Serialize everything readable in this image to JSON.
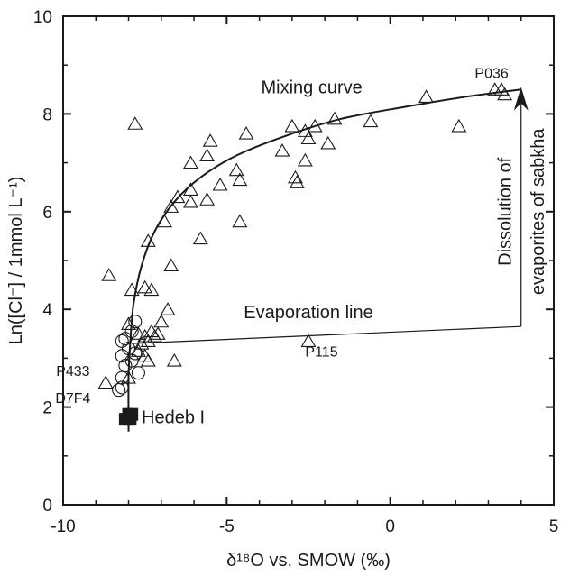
{
  "chart_data": {
    "type": "scatter",
    "ylabel": "Ln([Cl⁻] / 1mmol L⁻¹)",
    "xlabel": "δ¹⁸O vs. SMOW (‰)",
    "xlim": [
      -10,
      5
    ],
    "ylim": [
      0,
      10
    ],
    "xticks": [
      -10,
      -5,
      0,
      5
    ],
    "yticks": [
      0,
      2,
      4,
      6,
      8,
      10
    ],
    "xtick_labels": [
      "-10",
      "-5",
      "0",
      "5"
    ],
    "ytick_labels": [
      "0",
      "2",
      "4",
      "6",
      "8",
      "10"
    ],
    "grid": false,
    "series": [
      {
        "marker": "triangle",
        "points": [
          [
            -7.8,
            7.8
          ],
          [
            -8.6,
            4.7
          ],
          [
            -7.9,
            4.4
          ],
          [
            -7.5,
            4.45
          ],
          [
            -7.3,
            4.4
          ],
          [
            -7.4,
            5.4
          ],
          [
            -6.9,
            5.8
          ],
          [
            -6.7,
            6.1
          ],
          [
            -6.5,
            6.3
          ],
          [
            -6.1,
            6.45
          ],
          [
            -6.1,
            6.2
          ],
          [
            -6.1,
            7.0
          ],
          [
            -5.8,
            5.45
          ],
          [
            -5.6,
            6.25
          ],
          [
            -5.6,
            7.15
          ],
          [
            -5.5,
            7.45
          ],
          [
            -5.2,
            6.55
          ],
          [
            -4.7,
            6.85
          ],
          [
            -4.6,
            6.65
          ],
          [
            -4.6,
            5.8
          ],
          [
            -4.4,
            7.6
          ],
          [
            -3.3,
            7.25
          ],
          [
            -3.0,
            7.75
          ],
          [
            -2.9,
            6.7
          ],
          [
            -2.85,
            6.6
          ],
          [
            -2.6,
            7.05
          ],
          [
            -2.6,
            7.65
          ],
          [
            -2.5,
            7.5
          ],
          [
            -2.3,
            7.75
          ],
          [
            -1.9,
            7.4
          ],
          [
            -1.7,
            7.9
          ],
          [
            -0.6,
            7.85
          ],
          [
            1.1,
            8.35
          ],
          [
            2.1,
            7.75
          ],
          [
            3.2,
            8.5
          ],
          [
            3.4,
            8.5
          ],
          [
            3.5,
            8.4
          ],
          [
            -6.7,
            4.9
          ],
          [
            -6.8,
            4.0
          ],
          [
            -7.0,
            3.75
          ],
          [
            -7.1,
            3.5
          ],
          [
            -7.2,
            3.45
          ],
          [
            -7.3,
            3.55
          ],
          [
            -7.4,
            3.35
          ],
          [
            -7.5,
            3.45
          ],
          [
            -7.6,
            3.3
          ],
          [
            -7.7,
            3.5
          ],
          [
            -7.5,
            3.05
          ],
          [
            -7.7,
            3.15
          ],
          [
            -7.4,
            2.95
          ],
          [
            -6.6,
            2.95
          ],
          [
            -2.5,
            3.35
          ],
          [
            -8.7,
            2.5
          ],
          [
            -8.0,
            3.7
          ],
          [
            -8.0,
            2.6
          ]
        ]
      },
      {
        "marker": "circle",
        "points": [
          [
            -7.8,
            3.75
          ],
          [
            -7.9,
            3.55
          ],
          [
            -8.1,
            3.4
          ],
          [
            -8.2,
            3.35
          ],
          [
            -8.0,
            3.2
          ],
          [
            -7.8,
            3.1
          ],
          [
            -8.2,
            3.05
          ],
          [
            -7.9,
            2.95
          ],
          [
            -8.1,
            2.85
          ],
          [
            -7.7,
            2.7
          ],
          [
            -8.2,
            2.6
          ],
          [
            -8.2,
            2.4
          ],
          [
            -8.3,
            2.35
          ]
        ]
      },
      {
        "marker": "square",
        "points": [
          [
            -7.9,
            1.85
          ],
          [
            -8.1,
            1.75
          ],
          [
            -8.0,
            1.85
          ],
          [
            -7.95,
            1.75
          ]
        ]
      }
    ],
    "lines": {
      "mixing_curve": [
        [
          -8.0,
          1.5
        ],
        [
          -8.0,
          2.6
        ],
        [
          -7.95,
          3.3
        ],
        [
          -7.85,
          4.1
        ],
        [
          -7.6,
          4.9
        ],
        [
          -7.2,
          5.6
        ],
        [
          -6.6,
          6.2
        ],
        [
          -5.8,
          6.7
        ],
        [
          -4.7,
          7.15
        ],
        [
          -3.2,
          7.55
        ],
        [
          -1.5,
          7.9
        ],
        [
          0.5,
          8.15
        ],
        [
          2.3,
          8.35
        ],
        [
          4.0,
          8.5
        ]
      ],
      "evaporation_line": [
        [
          -7.9,
          3.3
        ],
        [
          4.0,
          3.65
        ]
      ],
      "sabkha_arrow": {
        "from": [
          4.0,
          3.65
        ],
        "to": [
          4.0,
          8.55
        ]
      }
    },
    "annotations": {
      "mixing_curve": {
        "text": "Mixing curve",
        "at": [
          -2.4,
          8.55
        ]
      },
      "evaporation_line": {
        "text": "Evaporation line",
        "at": [
          -2.5,
          3.95
        ]
      },
      "sabkha_line1": {
        "text": "Dissolution of",
        "at": [
          3.5,
          6.0
        ]
      },
      "sabkha_line2": {
        "text": "evaporites of sabkha",
        "at": [
          4.5,
          6.0
        ]
      },
      "p036": {
        "text": "P036",
        "at": [
          3.1,
          8.85
        ]
      },
      "p115": {
        "text": "P115",
        "at": [
          -2.1,
          3.15
        ]
      },
      "p433": {
        "text": "P433",
        "at": [
          -9.7,
          2.75
        ]
      },
      "d7f4": {
        "text": "D7F4",
        "at": [
          -9.7,
          2.2
        ]
      },
      "hedeb": {
        "text": "Hedeb I",
        "at": [
          -7.6,
          1.8
        ]
      }
    }
  }
}
